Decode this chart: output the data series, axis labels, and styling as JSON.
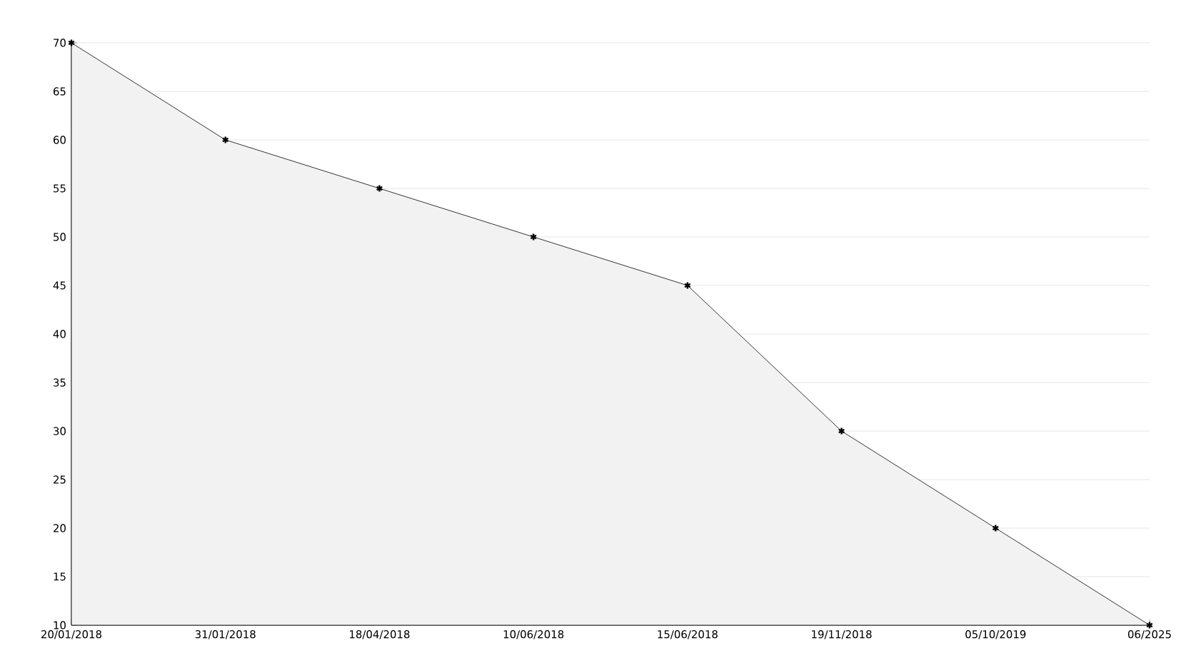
{
  "chart_data": {
    "type": "area",
    "categories": [
      "20/01/2018",
      "31/01/2018",
      "18/04/2018",
      "10/06/2018",
      "15/06/2018",
      "19/11/2018",
      "05/10/2019",
      "06/2025"
    ],
    "values": [
      70,
      60,
      55,
      50,
      45,
      30,
      20,
      10
    ],
    "color": "#f2f2f2",
    "ylim": [
      10,
      70
    ],
    "yticks": [
      10,
      15,
      20,
      25,
      30,
      35,
      40,
      45,
      50,
      55,
      60,
      65,
      70
    ],
    "grid": "y",
    "marker": "cross",
    "line_style": "solid"
  }
}
